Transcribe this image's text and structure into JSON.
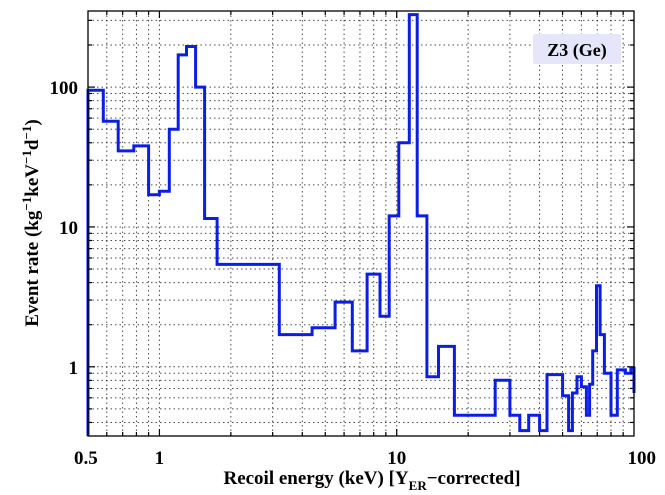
{
  "chart_data": {
    "type": "line",
    "step": true,
    "xscale": "log",
    "yscale": "log",
    "xlim": [
      0.5,
      100
    ],
    "ylim": [
      0.32,
      350
    ],
    "grid": true,
    "xlabel": "Recoil energy (keV) [Y",
    "xlabel_sub": "ER",
    "xlabel_tail": "−corrected]",
    "ylabel_main": "Event rate (kg",
    "ylabel_sup1": "−1",
    "ylabel_mid": "keV",
    "ylabel_sup2": "−1",
    "ylabel_mid2": "d",
    "ylabel_sup3": "−1",
    "ylabel_tail": ")",
    "x_ticks": [
      {
        "value": 0.5,
        "label": "0.5"
      },
      {
        "value": 1,
        "label": "1"
      },
      {
        "value": 10,
        "label": "10"
      },
      {
        "value": 100,
        "label": "100"
      }
    ],
    "y_ticks": [
      {
        "value": 1,
        "label": "1"
      },
      {
        "value": 10,
        "label": "10"
      },
      {
        "value": 100,
        "label": "100"
      }
    ],
    "legend": {
      "text": "Z3 (Ge)",
      "background": "#e6e6fa"
    },
    "series": [
      {
        "color": "#0a1ee6",
        "edges": [
          0.5,
          0.58,
          0.67,
          0.78,
          0.9,
          1.0,
          1.1,
          1.2,
          1.3,
          1.42,
          1.55,
          1.75,
          2.2,
          3.2,
          4.4,
          5.5,
          6.5,
          7.5,
          8.5,
          9.3,
          10.2,
          11.3,
          12.2,
          13.4,
          15.0,
          17.5,
          26.0,
          30.0,
          33.0,
          36.0,
          40.0,
          43.0,
          50.0,
          53.0,
          55.0,
          57.5,
          60.0,
          63.0,
          65.0,
          67.0,
          69.5,
          72.0,
          75.0,
          80.0,
          85.0,
          92.0,
          97.0,
          100.0
        ],
        "values": [
          95,
          57,
          35,
          38,
          17,
          18,
          50,
          170,
          195,
          100,
          11.5,
          5.4,
          5.4,
          1.7,
          1.9,
          2.9,
          1.3,
          4.6,
          2.3,
          12,
          40,
          330,
          12,
          0.85,
          1.4,
          0.45,
          0.8,
          0.45,
          0.35,
          0.45,
          0.35,
          0.88,
          0.62,
          0.35,
          0.65,
          0.85,
          0.72,
          0.45,
          0.75,
          1.3,
          3.8,
          1.7,
          0.9,
          0.45,
          0.95,
          0.9,
          0.98,
          0.65
        ]
      }
    ]
  }
}
